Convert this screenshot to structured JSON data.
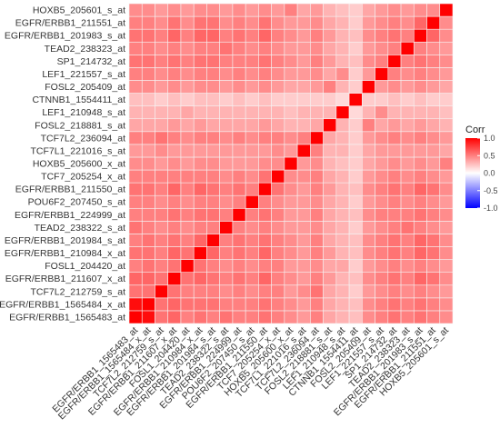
{
  "chart_data": {
    "type": "heatmap",
    "title": "",
    "xlabel": "",
    "ylabel": "",
    "labels": [
      "EGFR/ERBB1_1565483_at",
      "EGFR/ERBB1_1565484_x_at",
      "TCF7L2_212759_s_at",
      "EGFR/ERBB1_211607_x_at",
      "FOSL1_204420_at",
      "EGFR/ERBB1_210984_x_at",
      "EGFR/ERBB1_201984_s_at",
      "TEAD2_238322_s_at",
      "EGFR/ERBB1_224999_at",
      "POU6F2_207450_s_at",
      "EGFR/ERBB1_211550_at",
      "TCF7_205254_x_at",
      "HOXB5_205600_x_at",
      "TCF7L1_221016_s_at",
      "TCF7L2_236094_at",
      "FOSL2_218881_s_at",
      "LEF1_210948_s_at",
      "CTNNB1_1554411_at",
      "FOSL2_205409_at",
      "LEF1_221557_s_at",
      "SP1_214732_at",
      "TEAD2_238323_at",
      "EGFR/ERBB1_201983_s_at",
      "EGFR/ERBB1_211551_at",
      "HOXB5_205601_s_at"
    ],
    "matrix": [
      [
        1.0,
        0.95,
        0.55,
        0.6,
        0.5,
        0.55,
        0.5,
        0.55,
        0.5,
        0.5,
        0.55,
        0.5,
        0.45,
        0.4,
        0.5,
        0.35,
        0.3,
        0.25,
        0.45,
        0.5,
        0.55,
        0.5,
        0.55,
        0.5,
        0.45
      ],
      [
        0.95,
        1.0,
        0.55,
        0.6,
        0.55,
        0.55,
        0.55,
        0.5,
        0.5,
        0.5,
        0.55,
        0.5,
        0.45,
        0.4,
        0.5,
        0.35,
        0.3,
        0.25,
        0.45,
        0.5,
        0.55,
        0.5,
        0.55,
        0.5,
        0.45
      ],
      [
        0.55,
        0.55,
        1.0,
        0.55,
        0.5,
        0.5,
        0.5,
        0.45,
        0.5,
        0.45,
        0.5,
        0.5,
        0.4,
        0.45,
        0.55,
        0.35,
        0.3,
        0.2,
        0.4,
        0.45,
        0.5,
        0.45,
        0.5,
        0.45,
        0.4
      ],
      [
        0.6,
        0.6,
        0.55,
        1.0,
        0.55,
        0.6,
        0.55,
        0.5,
        0.55,
        0.5,
        0.6,
        0.5,
        0.45,
        0.4,
        0.5,
        0.4,
        0.3,
        0.25,
        0.45,
        0.5,
        0.55,
        0.5,
        0.6,
        0.55,
        0.45
      ],
      [
        0.5,
        0.55,
        0.5,
        0.55,
        1.0,
        0.55,
        0.5,
        0.45,
        0.5,
        0.45,
        0.5,
        0.5,
        0.4,
        0.4,
        0.45,
        0.35,
        0.35,
        0.2,
        0.4,
        0.45,
        0.5,
        0.45,
        0.5,
        0.45,
        0.4
      ],
      [
        0.55,
        0.55,
        0.5,
        0.6,
        0.55,
        1.0,
        0.6,
        0.5,
        0.55,
        0.5,
        0.6,
        0.5,
        0.45,
        0.4,
        0.5,
        0.4,
        0.3,
        0.25,
        0.45,
        0.5,
        0.55,
        0.5,
        0.6,
        0.55,
        0.45
      ],
      [
        0.5,
        0.55,
        0.5,
        0.55,
        0.5,
        0.6,
        1.0,
        0.5,
        0.55,
        0.5,
        0.55,
        0.5,
        0.45,
        0.4,
        0.5,
        0.35,
        0.3,
        0.25,
        0.45,
        0.5,
        0.55,
        0.5,
        0.6,
        0.55,
        0.45
      ],
      [
        0.55,
        0.5,
        0.45,
        0.5,
        0.45,
        0.5,
        0.5,
        1.0,
        0.5,
        0.45,
        0.5,
        0.45,
        0.4,
        0.4,
        0.45,
        0.35,
        0.3,
        0.2,
        0.4,
        0.45,
        0.5,
        0.55,
        0.5,
        0.45,
        0.4
      ],
      [
        0.5,
        0.5,
        0.5,
        0.55,
        0.5,
        0.55,
        0.55,
        0.5,
        1.0,
        0.5,
        0.55,
        0.5,
        0.4,
        0.4,
        0.5,
        0.35,
        0.3,
        0.25,
        0.45,
        0.5,
        0.5,
        0.5,
        0.55,
        0.5,
        0.45
      ],
      [
        0.5,
        0.5,
        0.45,
        0.5,
        0.45,
        0.5,
        0.5,
        0.45,
        0.5,
        1.0,
        0.5,
        0.45,
        0.4,
        0.4,
        0.45,
        0.35,
        0.3,
        0.2,
        0.4,
        0.45,
        0.5,
        0.45,
        0.5,
        0.45,
        0.4
      ],
      [
        0.55,
        0.55,
        0.5,
        0.6,
        0.5,
        0.6,
        0.55,
        0.5,
        0.55,
        0.5,
        1.0,
        0.55,
        0.45,
        0.4,
        0.5,
        0.4,
        0.3,
        0.25,
        0.45,
        0.5,
        0.55,
        0.5,
        0.6,
        0.55,
        0.45
      ],
      [
        0.5,
        0.5,
        0.5,
        0.5,
        0.5,
        0.5,
        0.5,
        0.45,
        0.5,
        0.45,
        0.55,
        1.0,
        0.45,
        0.45,
        0.5,
        0.35,
        0.3,
        0.2,
        0.4,
        0.45,
        0.5,
        0.45,
        0.5,
        0.45,
        0.4
      ],
      [
        0.45,
        0.45,
        0.4,
        0.45,
        0.4,
        0.45,
        0.45,
        0.4,
        0.4,
        0.4,
        0.45,
        0.45,
        1.0,
        0.4,
        0.45,
        0.3,
        0.25,
        0.2,
        0.35,
        0.4,
        0.45,
        0.4,
        0.45,
        0.4,
        0.5
      ],
      [
        0.4,
        0.4,
        0.45,
        0.4,
        0.4,
        0.4,
        0.4,
        0.4,
        0.4,
        0.4,
        0.4,
        0.45,
        0.4,
        1.0,
        0.5,
        0.3,
        0.3,
        0.2,
        0.35,
        0.4,
        0.4,
        0.4,
        0.4,
        0.4,
        0.35
      ],
      [
        0.5,
        0.5,
        0.55,
        0.5,
        0.45,
        0.5,
        0.5,
        0.45,
        0.5,
        0.45,
        0.5,
        0.5,
        0.45,
        0.5,
        1.0,
        0.35,
        0.3,
        0.2,
        0.4,
        0.45,
        0.5,
        0.45,
        0.5,
        0.45,
        0.4
      ],
      [
        0.35,
        0.35,
        0.35,
        0.4,
        0.35,
        0.4,
        0.35,
        0.35,
        0.35,
        0.35,
        0.4,
        0.35,
        0.3,
        0.3,
        0.35,
        1.0,
        0.3,
        0.2,
        0.5,
        0.35,
        0.4,
        0.35,
        0.4,
        0.35,
        0.3
      ],
      [
        0.3,
        0.3,
        0.3,
        0.3,
        0.35,
        0.3,
        0.3,
        0.3,
        0.3,
        0.3,
        0.3,
        0.3,
        0.25,
        0.3,
        0.3,
        0.3,
        1.0,
        0.15,
        0.3,
        0.45,
        0.3,
        0.3,
        0.3,
        0.3,
        0.25
      ],
      [
        0.25,
        0.25,
        0.2,
        0.25,
        0.2,
        0.25,
        0.25,
        0.2,
        0.25,
        0.2,
        0.25,
        0.2,
        0.2,
        0.2,
        0.2,
        0.2,
        0.15,
        1.0,
        0.2,
        0.2,
        0.25,
        0.2,
        0.25,
        0.2,
        0.2
      ],
      [
        0.45,
        0.45,
        0.4,
        0.45,
        0.4,
        0.45,
        0.45,
        0.4,
        0.45,
        0.4,
        0.45,
        0.4,
        0.35,
        0.35,
        0.4,
        0.5,
        0.3,
        0.2,
        1.0,
        0.4,
        0.45,
        0.4,
        0.45,
        0.4,
        0.35
      ],
      [
        0.5,
        0.5,
        0.45,
        0.5,
        0.45,
        0.5,
        0.5,
        0.45,
        0.5,
        0.45,
        0.5,
        0.45,
        0.4,
        0.4,
        0.45,
        0.35,
        0.45,
        0.2,
        0.4,
        1.0,
        0.5,
        0.45,
        0.5,
        0.45,
        0.4
      ],
      [
        0.55,
        0.55,
        0.5,
        0.55,
        0.5,
        0.55,
        0.55,
        0.5,
        0.5,
        0.5,
        0.55,
        0.5,
        0.45,
        0.4,
        0.5,
        0.4,
        0.3,
        0.25,
        0.45,
        0.5,
        1.0,
        0.5,
        0.55,
        0.5,
        0.45
      ],
      [
        0.5,
        0.5,
        0.45,
        0.5,
        0.45,
        0.5,
        0.5,
        0.55,
        0.5,
        0.45,
        0.5,
        0.45,
        0.4,
        0.4,
        0.45,
        0.35,
        0.3,
        0.2,
        0.4,
        0.45,
        0.5,
        1.0,
        0.5,
        0.45,
        0.4
      ],
      [
        0.55,
        0.55,
        0.5,
        0.6,
        0.5,
        0.6,
        0.6,
        0.5,
        0.55,
        0.5,
        0.6,
        0.5,
        0.45,
        0.4,
        0.5,
        0.4,
        0.3,
        0.25,
        0.45,
        0.5,
        0.55,
        0.5,
        1.0,
        0.6,
        0.45
      ],
      [
        0.5,
        0.5,
        0.45,
        0.55,
        0.45,
        0.55,
        0.55,
        0.45,
        0.5,
        0.45,
        0.55,
        0.45,
        0.4,
        0.4,
        0.45,
        0.35,
        0.3,
        0.2,
        0.4,
        0.45,
        0.5,
        0.45,
        0.6,
        1.0,
        0.45
      ],
      [
        0.45,
        0.45,
        0.4,
        0.45,
        0.4,
        0.45,
        0.45,
        0.4,
        0.45,
        0.4,
        0.45,
        0.4,
        0.5,
        0.35,
        0.4,
        0.3,
        0.25,
        0.2,
        0.35,
        0.4,
        0.45,
        0.4,
        0.45,
        0.45,
        1.0
      ]
    ],
    "legend": {
      "title": "Corr",
      "ticks": [
        "1.0",
        "0.5",
        "0.0",
        "-0.5",
        "-1.0"
      ],
      "tick_values": [
        1.0,
        0.5,
        0.0,
        -0.5,
        -1.0
      ],
      "range": [
        -1.0,
        1.0
      ],
      "placement": "right"
    },
    "colors": {
      "low": "#0000ff",
      "mid": "#ffffff",
      "high": "#ff0000",
      "grid": "#f4f4f4"
    },
    "grid": false
  }
}
